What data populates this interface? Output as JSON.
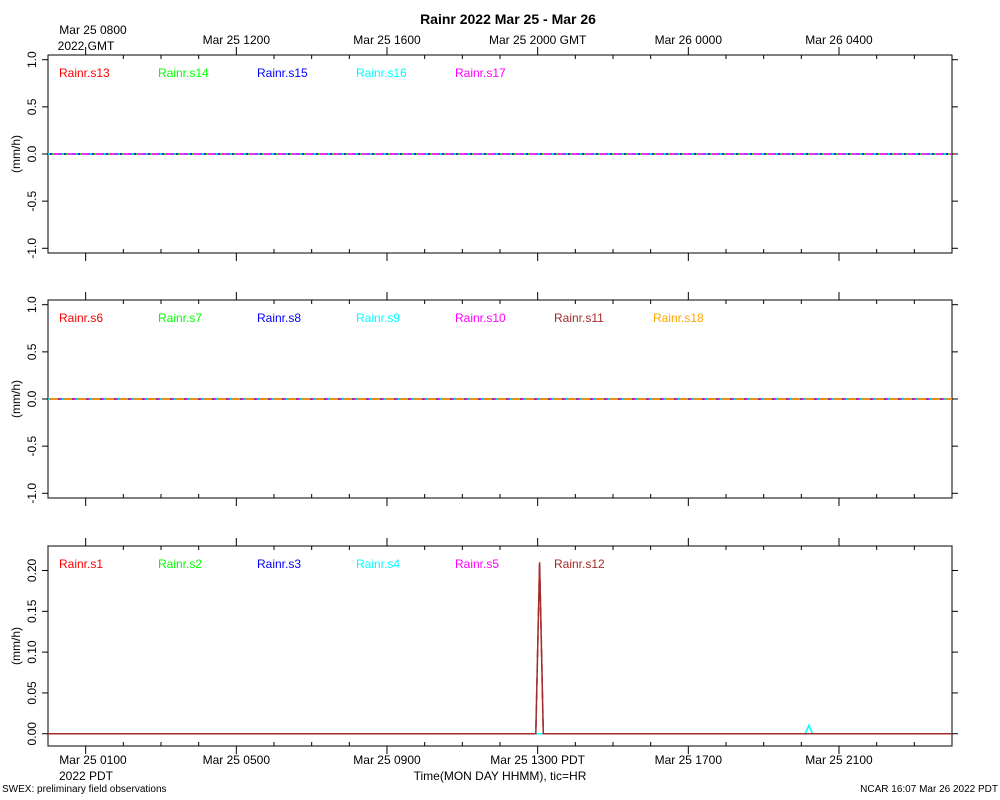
{
  "title": "Rainr 2022 Mar 25 - Mar 26",
  "top_axis": {
    "first_label_line1": "Mar 25 0800",
    "first_label_line2": "2022 GMT",
    "labels": [
      "Mar 25 1200",
      "Mar 25 1600",
      "Mar 25 2000 GMT",
      "Mar 26 0000",
      "Mar 26 0400"
    ]
  },
  "bottom_axis": {
    "first_label_line1": "Mar 25 0100",
    "first_label_line2": "2022 PDT",
    "labels": [
      "Mar 25 0500",
      "Mar 25 0900",
      "Mar 25 1300 PDT",
      "Mar 25 1700",
      "Mar 25 2100"
    ],
    "xlabel": "Time(MON DAY HHMM), tic=HR"
  },
  "footer_left": "SWEX: preliminary field observations",
  "footer_right": "NCAR 16:07 Mar 26 2022 PDT",
  "chart_data": [
    {
      "type": "line",
      "title": "",
      "xlabel": "",
      "ylabel": "(mm/h)",
      "x_unit": "hours since Mar 25 0100 PDT",
      "xlim": [
        -1,
        23
      ],
      "ylim": [
        -1.05,
        1.05
      ],
      "yticks": [
        -1,
        -0.5,
        0,
        0.5,
        1
      ],
      "ytick_labels": [
        "-1.0",
        "-0.5",
        "0.0",
        "0.5",
        "1.0"
      ],
      "grid": false,
      "legend": "top-left",
      "series": [
        {
          "name": "Rainr.s13",
          "color": "#ff0000",
          "points": [
            [
              -1,
              0
            ],
            [
              23,
              0
            ]
          ]
        },
        {
          "name": "Rainr.s14",
          "color": "#00ff00",
          "points": [
            [
              -1,
              0
            ],
            [
              23,
              0
            ]
          ]
        },
        {
          "name": "Rainr.s15",
          "color": "#0000ff",
          "points": [
            [
              -1,
              0
            ],
            [
              23,
              0
            ]
          ]
        },
        {
          "name": "Rainr.s16",
          "color": "#00ffff",
          "points": [
            [
              -1,
              0
            ],
            [
              23,
              0
            ]
          ]
        },
        {
          "name": "Rainr.s17",
          "color": "#ff00ff",
          "points": [
            [
              -1,
              0
            ],
            [
              23,
              0
            ]
          ]
        }
      ]
    },
    {
      "type": "line",
      "title": "",
      "xlabel": "",
      "ylabel": "(mm/h)",
      "x_unit": "hours since Mar 25 0100 PDT",
      "xlim": [
        -1,
        23
      ],
      "ylim": [
        -1.05,
        1.05
      ],
      "yticks": [
        -1,
        -0.5,
        0,
        0.5,
        1
      ],
      "ytick_labels": [
        "-1.0",
        "-0.5",
        "0.0",
        "0.5",
        "1.0"
      ],
      "grid": false,
      "legend": "top-left",
      "series": [
        {
          "name": "Rainr.s6",
          "color": "#ff0000",
          "points": [
            [
              -1,
              0
            ],
            [
              23,
              0
            ]
          ]
        },
        {
          "name": "Rainr.s7",
          "color": "#00ff00",
          "points": [
            [
              -1,
              0
            ],
            [
              23,
              0
            ]
          ]
        },
        {
          "name": "Rainr.s8",
          "color": "#0000ff",
          "points": [
            [
              -1,
              0
            ],
            [
              23,
              0
            ]
          ]
        },
        {
          "name": "Rainr.s9",
          "color": "#00ffff",
          "points": [
            [
              -1,
              0
            ],
            [
              23,
              0
            ]
          ]
        },
        {
          "name": "Rainr.s10",
          "color": "#ff00ff",
          "points": [
            [
              -1,
              0
            ],
            [
              23,
              0
            ]
          ]
        },
        {
          "name": "Rainr.s11",
          "color": "#a52a2a",
          "points": [
            [
              -1,
              0
            ],
            [
              23,
              0
            ]
          ]
        },
        {
          "name": "Rainr.s18",
          "color": "#ffa500",
          "points": [
            [
              -1,
              0
            ],
            [
              23,
              0
            ]
          ]
        }
      ]
    },
    {
      "type": "line",
      "title": "",
      "xlabel": "Time(MON DAY HHMM), tic=HR",
      "ylabel": "(mm/h)",
      "x_unit": "hours since Mar 25 0100 PDT",
      "xlim": [
        -1,
        23
      ],
      "ylim": [
        -0.015,
        0.23
      ],
      "yticks": [
        0,
        0.05,
        0.1,
        0.15,
        0.2
      ],
      "ytick_labels": [
        "0.00",
        "0.05",
        "0.10",
        "0.15",
        "0.20"
      ],
      "grid": false,
      "legend": "top-left",
      "series": [
        {
          "name": "Rainr.s1",
          "color": "#ff0000",
          "points": [
            [
              -1,
              0
            ],
            [
              23,
              0
            ]
          ]
        },
        {
          "name": "Rainr.s2",
          "color": "#00ff00",
          "points": [
            [
              -1,
              0
            ],
            [
              23,
              0
            ]
          ]
        },
        {
          "name": "Rainr.s3",
          "color": "#0000ff",
          "points": [
            [
              -1,
              0
            ],
            [
              23,
              0
            ]
          ]
        },
        {
          "name": "Rainr.s4",
          "color": "#00ffff",
          "points": [
            [
              -1,
              0
            ],
            [
              19.1,
              0
            ],
            [
              19.2,
              0.01
            ],
            [
              19.3,
              0
            ],
            [
              23,
              0
            ]
          ]
        },
        {
          "name": "Rainr.s5",
          "color": "#ff00ff",
          "points": [
            [
              -1,
              0
            ],
            [
              23,
              0
            ]
          ]
        },
        {
          "name": "Rainr.s12",
          "color": "#a52a2a",
          "points": [
            [
              -1,
              0
            ],
            [
              11.95,
              0
            ],
            [
              12.05,
              0.21
            ],
            [
              12.15,
              0
            ],
            [
              23,
              0
            ]
          ]
        }
      ]
    }
  ]
}
